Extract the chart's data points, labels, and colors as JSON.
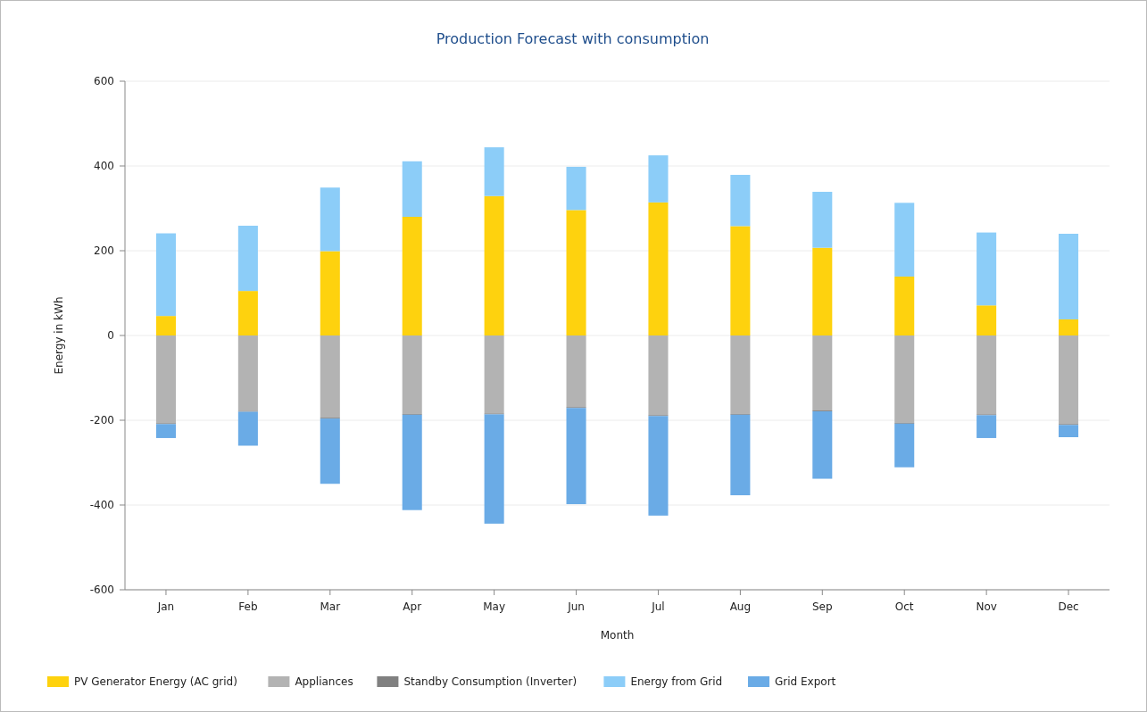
{
  "chart_data": {
    "type": "bar",
    "title": "Production Forecast with consumption",
    "xlabel": "Month",
    "ylabel": "Energy in kWh",
    "categories": [
      "Jan",
      "Feb",
      "Mar",
      "Apr",
      "May",
      "Jun",
      "Jul",
      "Aug",
      "Sep",
      "Oct",
      "Nov",
      "Dec"
    ],
    "stacked": true,
    "ylim": [
      -600,
      600
    ],
    "yticks": [
      -600,
      -400,
      -200,
      0,
      200,
      400,
      600
    ],
    "grid": "y",
    "legend": "bottom",
    "series": [
      {
        "name": "PV Generator Energy (AC grid)",
        "color": "#fed20e",
        "values": [
          46,
          105,
          199,
          280,
          329,
          296,
          314,
          258,
          207,
          139,
          71,
          38
        ]
      },
      {
        "name": "Appliances",
        "color": "#b3b3b3",
        "values": [
          -207,
          -178,
          -194,
          -185,
          -184,
          -169,
          -188,
          -185,
          -177,
          -206,
          -186,
          -209
        ]
      },
      {
        "name": "Standby Consumption (Inverter)",
        "color": "#808080",
        "values": [
          -2,
          -2,
          -2,
          -2,
          -2,
          -2,
          -2,
          -2,
          -2,
          -2,
          -2,
          -2
        ]
      },
      {
        "name": "Energy from Grid",
        "color": "#8ccdf8",
        "values": [
          195,
          154,
          150,
          131,
          115,
          102,
          111,
          121,
          132,
          174,
          172,
          202
        ]
      },
      {
        "name": "Grid Export",
        "color": "#6aabe6",
        "values": [
          -33,
          -80,
          -154,
          -225,
          -258,
          -227,
          -235,
          -190,
          -159,
          -103,
          -54,
          -29
        ]
      }
    ]
  }
}
